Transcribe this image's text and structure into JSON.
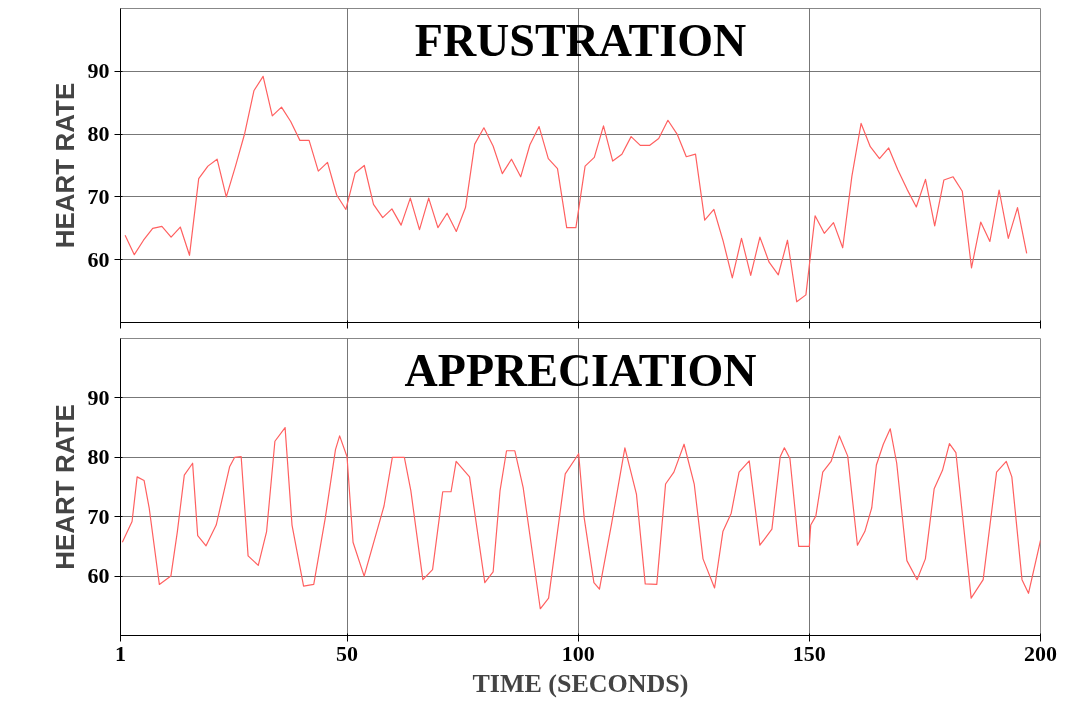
{
  "chart_data": [
    {
      "type": "line",
      "title": "FRUSTRATION",
      "ylabel": "HEART RATE",
      "categories": [
        null,
        null,
        null,
        null,
        null,
        null,
        null,
        null,
        null,
        null,
        null,
        null,
        null,
        null,
        null,
        null,
        null,
        null,
        null,
        null,
        null,
        null,
        null,
        null,
        null,
        null,
        null,
        null,
        null,
        null,
        null,
        null,
        null,
        null,
        null,
        null,
        null,
        null,
        null,
        null,
        null,
        null,
        null,
        null,
        null,
        null,
        null,
        null,
        null,
        null,
        null,
        null,
        null,
        null,
        null,
        null,
        null,
        null,
        null,
        null,
        null,
        null,
        null,
        null,
        null,
        null,
        null,
        null,
        null,
        null,
        null,
        null,
        null,
        null,
        null,
        null,
        null,
        null,
        null,
        null,
        null,
        null,
        null,
        null,
        null,
        null,
        null,
        null,
        null,
        null,
        null,
        null,
        null,
        null,
        null,
        null,
        null,
        null,
        null,
        null
      ],
      "ylim": [
        50,
        100
      ],
      "yticks": [
        60,
        70,
        80,
        90
      ],
      "grid": true,
      "tick_labels": "y",
      "series": [
        {
          "color": "#ff6060",
          "values": [
            63.9,
            60.8,
            63.1,
            65,
            65.3,
            63.6,
            65.2,
            60.7,
            72.9,
            74.9,
            76,
            70,
            74.9,
            80.1,
            86.9,
            89.2,
            82.9,
            84.3,
            82,
            79,
            79,
            74.1,
            75.5,
            70.3,
            68,
            73.8,
            75,
            68.8,
            66.7,
            68.1,
            65.5,
            69.8,
            64.8,
            69.8,
            65.1,
            67.4,
            64.5,
            68.3,
            78.4,
            81,
            78.1,
            73.7,
            76,
            73.2,
            78.3,
            81.2,
            76.1,
            74.5,
            65.1,
            65.1,
            74.9,
            76.3,
            81.3,
            75.7,
            76.8,
            79.6,
            78.2,
            78.2,
            79.3,
            82.2,
            80,
            76.4,
            76.8,
            66.3,
            68,
            63,
            57.1,
            63.4,
            57.5,
            63.6,
            59.6,
            57.6,
            63.1,
            53.3,
            54.4,
            67,
            64.2,
            65.9,
            61.9,
            73.3,
            81.7,
            78,
            76.1,
            77.8,
            74.3,
            71.2,
            68.4,
            72.8,
            65.4,
            72.7,
            73.2,
            70.9,
            58.7,
            66,
            62.9,
            71.1,
            63.4,
            68.3,
            61,
            null
          ]
        }
      ]
    },
    {
      "type": "line",
      "title": "APPRECIATION",
      "ylabel": "HEART RATE",
      "xlabel": "TIME (SECONDS)",
      "xlim": [
        1,
        200
      ],
      "xticks": [
        1,
        50,
        100,
        150,
        200
      ],
      "ylim": [
        50,
        100
      ],
      "yticks": [
        60,
        70,
        80,
        90
      ],
      "grid": true,
      "series": [
        {
          "color": "#ff6060",
          "x": [
            1.4,
            3.5,
            4.6,
            6.1,
            7.2,
            9.4,
            11.9,
            13.3,
            14.8,
            16.6,
            17.7,
            19.5,
            21.7,
            24.6,
            25.7,
            27.1,
            28.6,
            30.8,
            32.6,
            34.4,
            36.6,
            38.1,
            40.6,
            42.8,
            45.3,
            47.5,
            48.4,
            50,
            51.3,
            53.7,
            58,
            59.8,
            62.4,
            63.8,
            66.4,
            68.5,
            70.7,
            72.5,
            73.6,
            76.5,
            79.8,
            81.6,
            83.1,
            84.5,
            86.3,
            88.1,
            91.8,
            93.6,
            97.2,
            100.1,
            101.3,
            103.4,
            104.6,
            107.2,
            110.1,
            112.6,
            114.5,
            117,
            118.9,
            120.7,
            122.9,
            125.1,
            127,
            129.5,
            131.3,
            133.1,
            134.8,
            137,
            139.3,
            141.9,
            143.7,
            144.6,
            145.8,
            147.7,
            150,
            150.3,
            151.4,
            152.9,
            154.7,
            156.5,
            158.3,
            160.4,
            162,
            163.5,
            164.5,
            166,
            167.5,
            168.9,
            171.1,
            173.3,
            175.1,
            177,
            178.8,
            180.3,
            181.7,
            185,
            187.6,
            190.5,
            192.6,
            193.8,
            196,
            197.4,
            200
          ],
          "values": [
            65.7,
            69.2,
            76.7,
            76.1,
            71.5,
            58.6,
            60,
            67.5,
            77,
            79,
            66.8,
            65.1,
            68.6,
            78.4,
            80,
            80.1,
            63.4,
            61.8,
            67.5,
            82.7,
            85,
            68.6,
            58.3,
            58.6,
            69.8,
            81.3,
            83.6,
            80.1,
            65.7,
            60,
            71.8,
            80,
            80,
            74.4,
            59.4,
            61.1,
            74.2,
            74.2,
            79.3,
            76.7,
            58.9,
            60.7,
            74.4,
            81.1,
            81.1,
            74.9,
            54.5,
            56.3,
            77.2,
            80.6,
            69.8,
            58.9,
            57.8,
            68.7,
            81.6,
            73.8,
            58.7,
            58.6,
            75.5,
            77.5,
            82.2,
            75.5,
            62.9,
            58,
            67.5,
            70.6,
            77.5,
            79.4,
            65.2,
            67.9,
            80.1,
            81.6,
            79.8,
            65,
            65,
            68.6,
            70.1,
            77.5,
            79.3,
            83.6,
            80.2,
            65.2,
            67.5,
            71.5,
            78.7,
            82.2,
            84.8,
            79,
            62.6,
            59.4,
            62.9,
            74.7,
            77.8,
            82.3,
            80.8,
            56.3,
            59.4,
            77.5,
            79.3,
            76.7,
            59.4,
            57.1,
            66
          ]
        }
      ]
    }
  ]
}
